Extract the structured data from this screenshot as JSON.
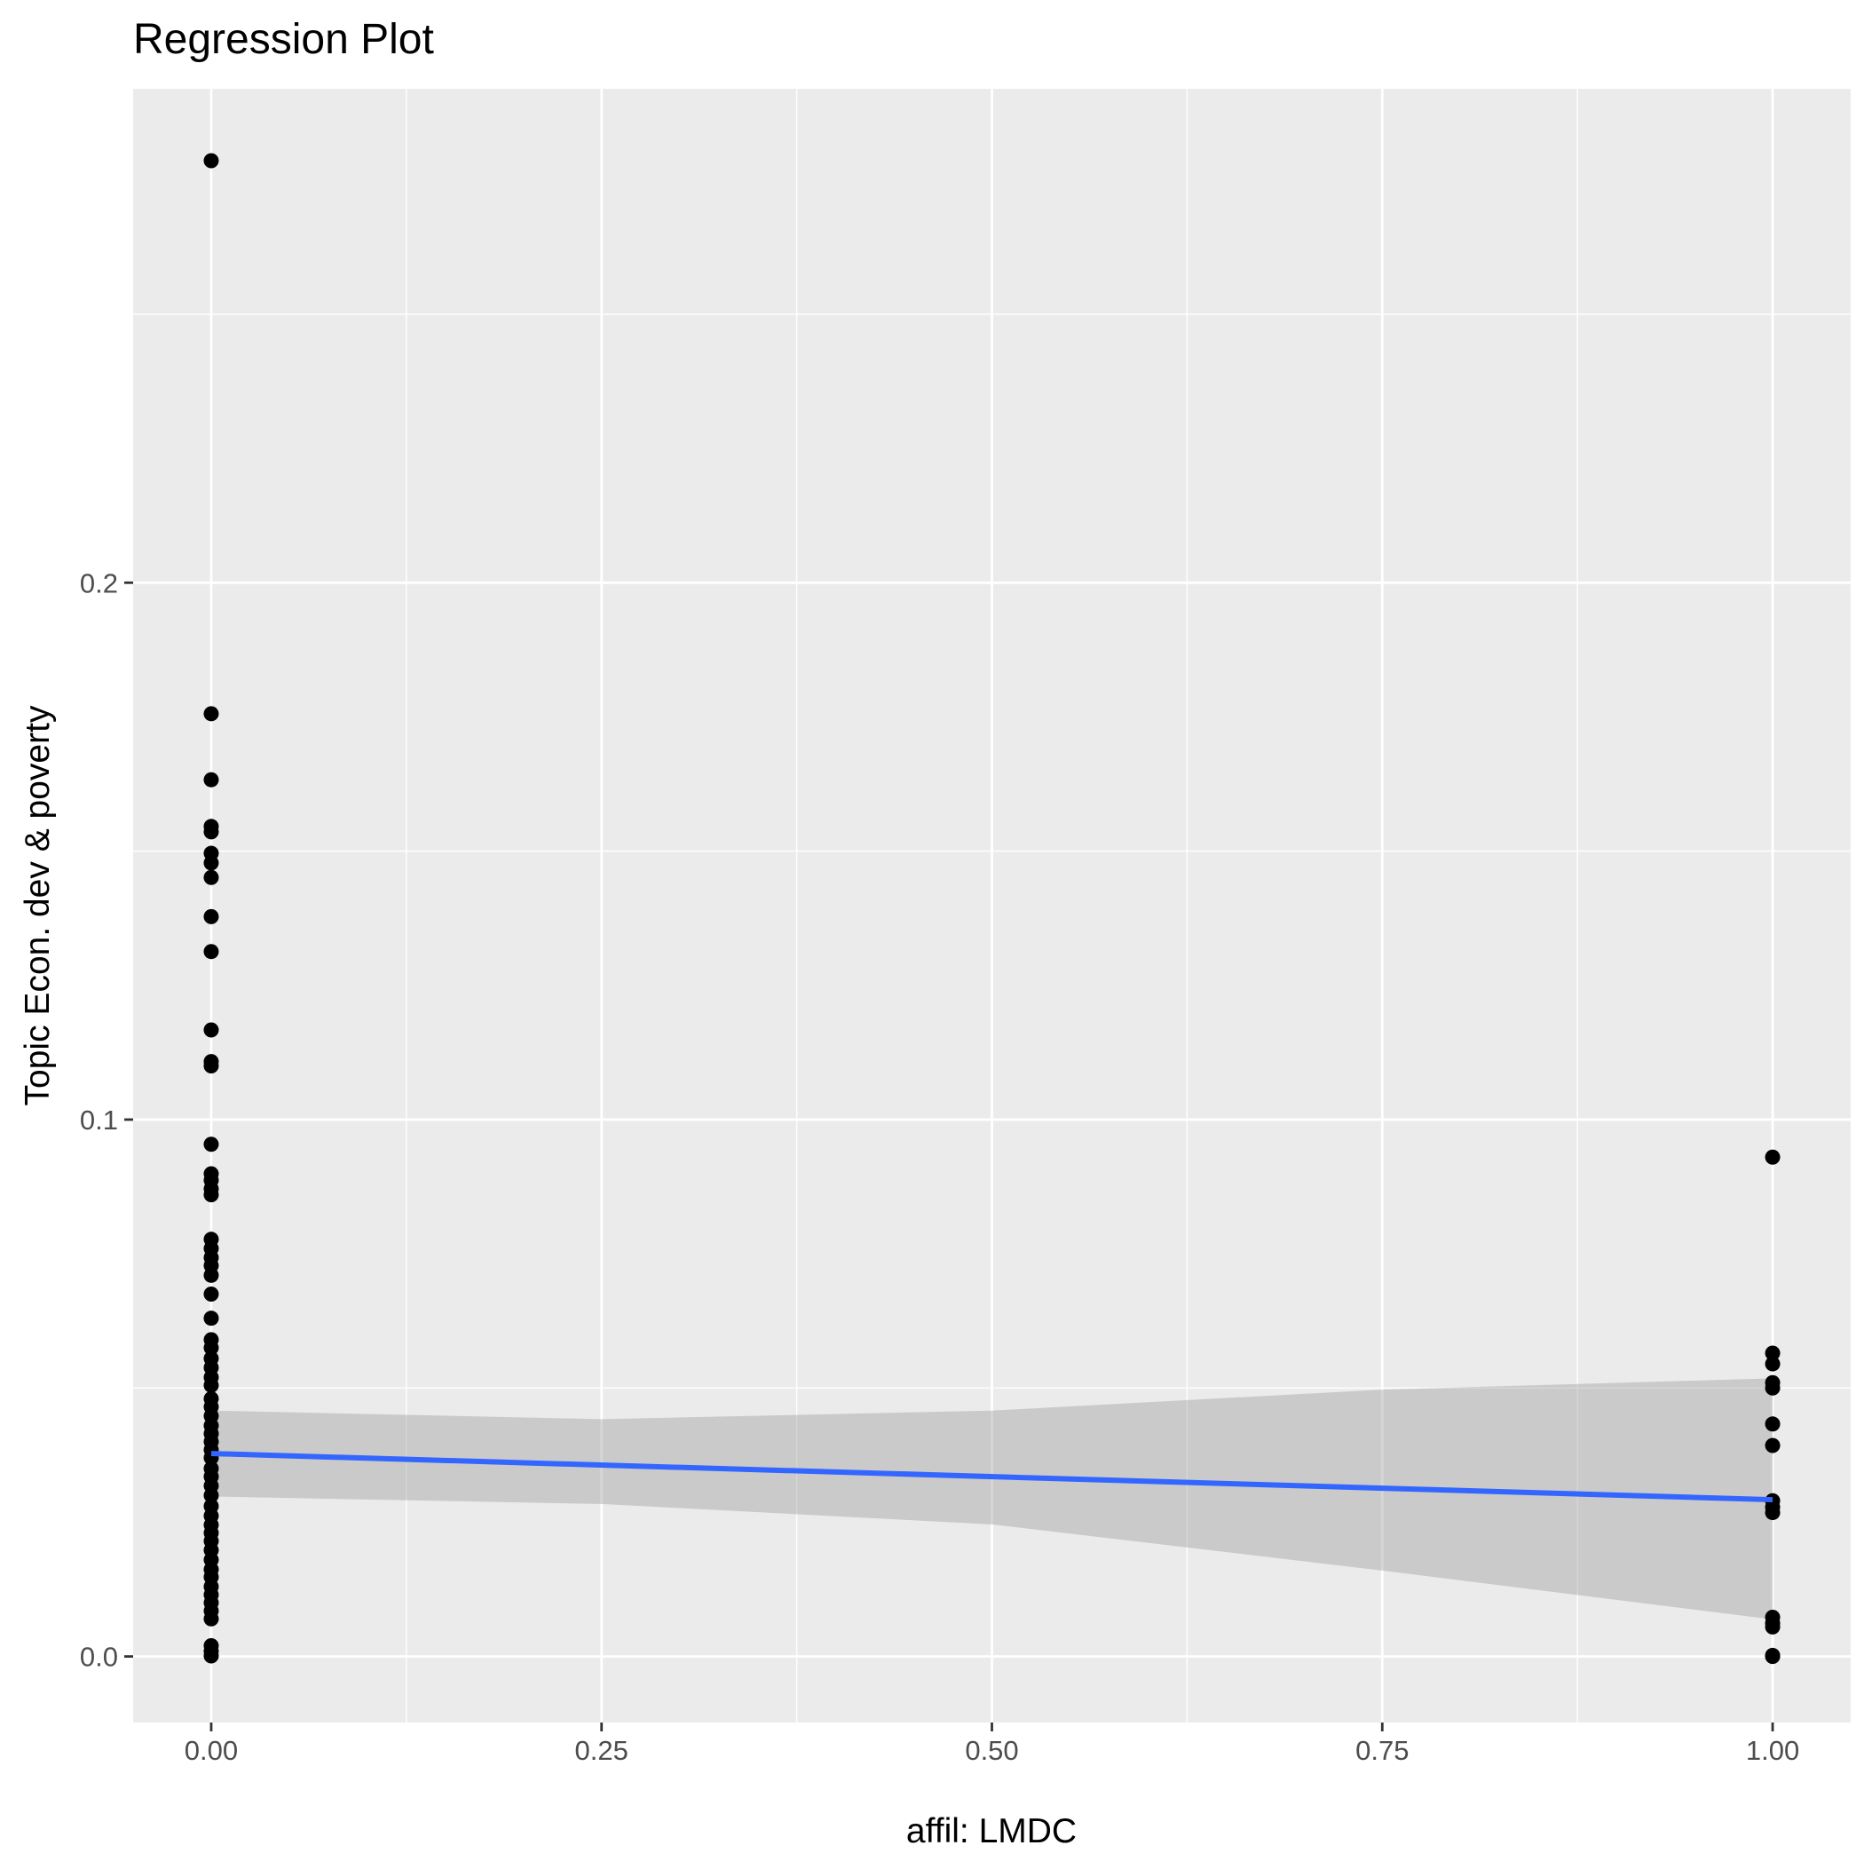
{
  "chart_data": {
    "type": "scatter",
    "title": "Regression Plot",
    "xlabel": "affil: LMDC",
    "ylabel": "Topic Econ. dev & poverty",
    "xlim": [
      -0.05,
      1.05
    ],
    "ylim": [
      -0.0123,
      0.292
    ],
    "x_ticks": [
      0,
      0.25,
      0.5,
      0.75,
      1
    ],
    "x_tick_labels": [
      "0.00",
      "0.25",
      "0.50",
      "0.75",
      "1.00"
    ],
    "y_ticks": [
      0,
      0.1,
      0.2
    ],
    "y_tick_labels": [
      "0.0",
      "0.1",
      "0.2"
    ],
    "grid": true,
    "points": [
      {
        "x": 0,
        "y": 0.2786
      },
      {
        "x": 0,
        "y": 0.1756
      },
      {
        "x": 0,
        "y": 0.1633
      },
      {
        "x": 0,
        "y": 0.1546
      },
      {
        "x": 0,
        "y": 0.1536
      },
      {
        "x": 0,
        "y": 0.1496
      },
      {
        "x": 0,
        "y": 0.1478
      },
      {
        "x": 0,
        "y": 0.1451
      },
      {
        "x": 0,
        "y": 0.1378
      },
      {
        "x": 0,
        "y": 0.1313
      },
      {
        "x": 0,
        "y": 0.1167
      },
      {
        "x": 0,
        "y": 0.1108
      },
      {
        "x": 0,
        "y": 0.11
      },
      {
        "x": 0,
        "y": 0.0954
      },
      {
        "x": 0,
        "y": 0.0899
      },
      {
        "x": 0,
        "y": 0.0887
      },
      {
        "x": 0,
        "y": 0.0871
      },
      {
        "x": 0,
        "y": 0.086
      },
      {
        "x": 0,
        "y": 0.0777
      },
      {
        "x": 0,
        "y": 0.076
      },
      {
        "x": 0,
        "y": 0.0743
      },
      {
        "x": 0,
        "y": 0.0728
      },
      {
        "x": 0,
        "y": 0.071
      },
      {
        "x": 0,
        "y": 0.0675
      },
      {
        "x": 0,
        "y": 0.063
      },
      {
        "x": 0,
        "y": 0.059
      },
      {
        "x": 0,
        "y": 0.0575
      },
      {
        "x": 0,
        "y": 0.0555
      },
      {
        "x": 0,
        "y": 0.0538
      },
      {
        "x": 0,
        "y": 0.052
      },
      {
        "x": 0,
        "y": 0.0505
      },
      {
        "x": 0,
        "y": 0.048
      },
      {
        "x": 0,
        "y": 0.0465
      },
      {
        "x": 0,
        "y": 0.0448
      },
      {
        "x": 0,
        "y": 0.043
      },
      {
        "x": 0,
        "y": 0.0415
      },
      {
        "x": 0,
        "y": 0.04
      },
      {
        "x": 0,
        "y": 0.0385
      },
      {
        "x": 0,
        "y": 0.037
      },
      {
        "x": 0,
        "y": 0.035
      },
      {
        "x": 0,
        "y": 0.0335
      },
      {
        "x": 0,
        "y": 0.0318
      },
      {
        "x": 0,
        "y": 0.03
      },
      {
        "x": 0,
        "y": 0.028
      },
      {
        "x": 0,
        "y": 0.0262
      },
      {
        "x": 0,
        "y": 0.0245
      },
      {
        "x": 0,
        "y": 0.023
      },
      {
        "x": 0,
        "y": 0.0215
      },
      {
        "x": 0,
        "y": 0.0198
      },
      {
        "x": 0,
        "y": 0.018
      },
      {
        "x": 0,
        "y": 0.0162
      },
      {
        "x": 0,
        "y": 0.0148
      },
      {
        "x": 0,
        "y": 0.013
      },
      {
        "x": 0,
        "y": 0.0115
      },
      {
        "x": 0,
        "y": 0.01
      },
      {
        "x": 0,
        "y": 0.0085
      },
      {
        "x": 0,
        "y": 0.007
      },
      {
        "x": 0,
        "y": 0.002
      },
      {
        "x": 0,
        "y": 0.001
      },
      {
        "x": 0,
        "y": 0.0001
      },
      {
        "x": 1,
        "y": 0.093
      },
      {
        "x": 1,
        "y": 0.0565
      },
      {
        "x": 1,
        "y": 0.0545
      },
      {
        "x": 1,
        "y": 0.051
      },
      {
        "x": 1,
        "y": 0.05
      },
      {
        "x": 1,
        "y": 0.0433
      },
      {
        "x": 1,
        "y": 0.0393
      },
      {
        "x": 1,
        "y": 0.029
      },
      {
        "x": 1,
        "y": 0.0278
      },
      {
        "x": 1,
        "y": 0.0268
      },
      {
        "x": 1,
        "y": 0.0073
      },
      {
        "x": 1,
        "y": 0.0062
      },
      {
        "x": 1,
        "y": 0.0055
      },
      {
        "x": 1,
        "y": 0.0002
      },
      {
        "x": 1,
        "y": 0.0
      }
    ],
    "fit_line": {
      "x": [
        0,
        1
      ],
      "y": [
        0.0378,
        0.0292
      ]
    },
    "confidence_band": {
      "x": [
        0,
        0.25,
        0.5,
        0.75,
        1
      ],
      "upper": [
        0.0458,
        0.0442,
        0.0458,
        0.0497,
        0.0518
      ],
      "lower": [
        0.0298,
        0.0284,
        0.0246,
        0.016,
        0.0069
      ]
    },
    "colors": {
      "panel": "#ebebeb",
      "grid": "#ffffff",
      "points": "#000000",
      "fit_line": "#3366FF",
      "band": "#999999"
    }
  }
}
